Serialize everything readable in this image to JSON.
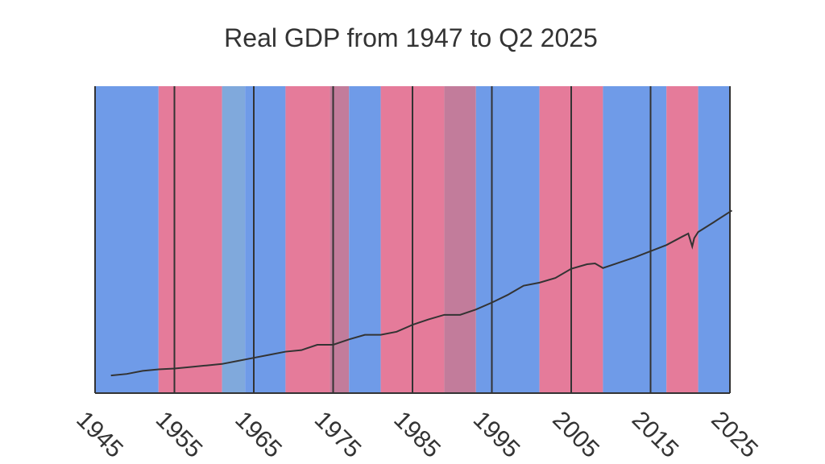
{
  "chart_data": {
    "type": "line",
    "title": "Real GDP from 1947 to Q2 2025",
    "x": [
      1947,
      1949,
      1951,
      1953,
      1955,
      1957,
      1959,
      1961,
      1963,
      1965,
      1967,
      1969,
      1971,
      1973,
      1975,
      1977,
      1979,
      1981,
      1983,
      1985,
      1987,
      1989,
      1991,
      1993,
      1995,
      1997,
      1999,
      2001,
      2003,
      2005,
      2007,
      2008,
      2009,
      2011,
      2013,
      2015,
      2017,
      2019,
      2019.75,
      2020.25,
      2020.5,
      2021,
      2023,
      2025.25
    ],
    "series": [
      {
        "color": "#333333",
        "values": [
          2.3,
          2.5,
          2.9,
          3.1,
          3.2,
          3.4,
          3.6,
          3.8,
          4.2,
          4.6,
          5.0,
          5.4,
          5.6,
          6.3,
          6.3,
          7.0,
          7.6,
          7.6,
          8.0,
          8.9,
          9.6,
          10.2,
          10.2,
          10.9,
          11.8,
          12.8,
          14.0,
          14.4,
          15.0,
          16.2,
          16.8,
          16.9,
          16.3,
          17.0,
          17.7,
          18.5,
          19.3,
          20.4,
          20.8,
          19.1,
          20.2,
          21.0,
          22.3,
          23.8
        ]
      }
    ],
    "periods": [
      {
        "start": 1945,
        "end": 1953,
        "color": "#6f9be8"
      },
      {
        "start": 1953,
        "end": 1961,
        "color": "#e57b9a"
      },
      {
        "start": 1961,
        "end": 1963.9,
        "color": "#80a9dc"
      },
      {
        "start": 1963.9,
        "end": 1969,
        "color": "#6f9be8"
      },
      {
        "start": 1969,
        "end": 1974.6,
        "color": "#e57b9a"
      },
      {
        "start": 1974.6,
        "end": 1977,
        "color": "#c27c9b"
      },
      {
        "start": 1977,
        "end": 1981,
        "color": "#6f9be8"
      },
      {
        "start": 1981,
        "end": 1989,
        "color": "#e57b9a"
      },
      {
        "start": 1989,
        "end": 1993,
        "color": "#c27c9b"
      },
      {
        "start": 1993,
        "end": 2001,
        "color": "#6f9be8"
      },
      {
        "start": 2001,
        "end": 2009,
        "color": "#e57b9a"
      },
      {
        "start": 2009,
        "end": 2017,
        "color": "#6f9be8"
      },
      {
        "start": 2017,
        "end": 2021,
        "color": "#e57b9a"
      },
      {
        "start": 2021,
        "end": 2025,
        "color": "#6f9be8"
      }
    ],
    "xlim": [
      1945,
      2025
    ],
    "xticks": [
      1945,
      1955,
      1965,
      1975,
      1985,
      1995,
      2005,
      2015,
      2025
    ],
    "ylim": [
      0,
      40
    ],
    "grid": true
  }
}
